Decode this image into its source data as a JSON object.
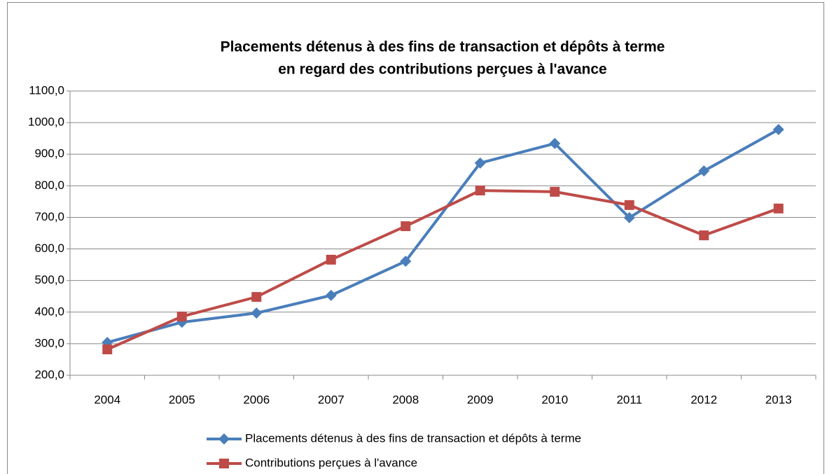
{
  "chart_data": {
    "type": "line",
    "title": [
      "Placements détenus à des fins de transaction et dépôts à terme",
      "en regard des contributions perçues à l'avance"
    ],
    "categories": [
      "2004",
      "2005",
      "2006",
      "2007",
      "2008",
      "2009",
      "2010",
      "2011",
      "2012",
      "2013"
    ],
    "series": [
      {
        "name": "Placements détenus à des fins de transaction et dépôts à terme",
        "color": "#4a7ebb",
        "marker": "diamond",
        "values": [
          304,
          368,
          397,
          453,
          561,
          872,
          934,
          699,
          847,
          978
        ]
      },
      {
        "name": "Contributions perçues à l'avance",
        "color": "#be4b48",
        "marker": "square",
        "values": [
          282,
          386,
          448,
          566,
          672,
          785,
          781,
          739,
          643,
          728
        ]
      }
    ],
    "ylim": [
      200,
      1100
    ],
    "yticks": [
      {
        "value": 200,
        "label": "200,0"
      },
      {
        "value": 300,
        "label": "300,0"
      },
      {
        "value": 400,
        "label": "400,0"
      },
      {
        "value": 500,
        "label": "500,0"
      },
      {
        "value": 600,
        "label": "600,0"
      },
      {
        "value": 700,
        "label": "700,0"
      },
      {
        "value": 800,
        "label": "800,0"
      },
      {
        "value": 900,
        "label": "900,0"
      },
      {
        "value": 1000,
        "label": "1000,0"
      },
      {
        "value": 1100,
        "label": "1100,0"
      }
    ],
    "grid": true,
    "legend": "bottom"
  }
}
